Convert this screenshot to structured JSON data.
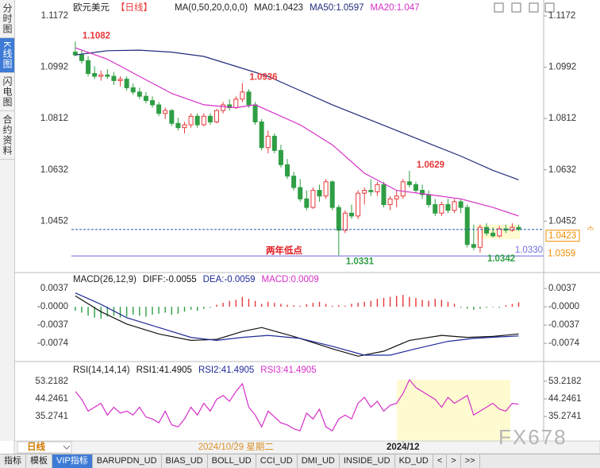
{
  "header": {
    "symbol": "欧元美元",
    "period": "【日线】",
    "ma_params": "MA(0,50,20,0,0,0)",
    "ma0": "MA0:1.0423"
  },
  "sidebar": [
    "分时图",
    "K线图",
    "闪电图",
    "合约资料"
  ],
  "chart_data": [
    {
      "type": "candlestick",
      "xlim": [
        -0.6,
        69.8
      ],
      "ylim": [
        1.028,
        1.1186
      ],
      "yticks": [
        1.1172,
        1.0992,
        1.0812,
        1.0632,
        1.0452
      ],
      "up_color": "#e8393a",
      "down_color": "#2f9e44",
      "open": [
        1.1045,
        1.1035,
        1.1015,
        1.097,
        1.096,
        1.0965,
        1.096,
        1.0945,
        1.095,
        1.092,
        1.0905,
        1.089,
        1.0875,
        1.086,
        1.083,
        1.084,
        1.0795,
        1.078,
        1.079,
        1.082,
        1.079,
        1.082,
        1.08,
        1.084,
        1.086,
        1.085,
        1.088,
        1.0905,
        1.086,
        1.08,
        1.071,
        1.075,
        1.07,
        1.065,
        1.061,
        1.057,
        1.053,
        1.05,
        1.056,
        1.054,
        1.059,
        1.05,
        1.042,
        1.048,
        1.047,
        1.055,
        1.056,
        1.0555,
        1.058,
        1.051,
        1.053,
        1.054,
        1.059,
        1.058,
        1.056,
        1.0545,
        1.051,
        1.048,
        1.051,
        1.049,
        1.052,
        1.05,
        1.037,
        1.036,
        1.043,
        1.041,
        1.04,
        1.0425,
        1.042,
        1.043
      ],
      "high": [
        1.1082,
        1.105,
        1.103,
        1.0995,
        1.098,
        1.0985,
        1.0975,
        1.096,
        1.096,
        1.0935,
        1.092,
        1.0905,
        1.089,
        1.087,
        1.085,
        1.0845,
        1.0815,
        1.08,
        1.083,
        1.083,
        1.083,
        1.083,
        1.0845,
        1.087,
        1.088,
        1.089,
        1.0936,
        1.0915,
        1.087,
        1.081,
        1.077,
        1.076,
        1.072,
        1.067,
        1.0625,
        1.06,
        1.056,
        1.057,
        1.058,
        1.06,
        1.0595,
        1.051,
        1.049,
        1.051,
        1.056,
        1.057,
        1.06,
        1.059,
        1.059,
        1.054,
        1.056,
        1.06,
        1.0629,
        1.059,
        1.058,
        1.056,
        1.053,
        1.052,
        1.053,
        1.053,
        1.053,
        1.051,
        1.044,
        1.044,
        1.0445,
        1.043,
        1.0435,
        1.044,
        1.0445,
        1.044
      ],
      "low": [
        1.103,
        1.1005,
        1.096,
        1.095,
        1.0945,
        1.095,
        1.093,
        1.0925,
        1.091,
        1.0895,
        1.088,
        1.0865,
        1.085,
        1.082,
        1.081,
        1.0785,
        1.077,
        1.076,
        1.078,
        1.078,
        1.0785,
        1.079,
        1.0795,
        1.083,
        1.084,
        1.0845,
        1.087,
        1.085,
        1.079,
        1.07,
        1.069,
        1.069,
        1.064,
        1.06,
        1.056,
        1.052,
        1.049,
        1.0495,
        1.052,
        1.053,
        1.049,
        1.0331,
        1.041,
        1.046,
        1.046,
        1.051,
        1.054,
        1.054,
        1.05,
        1.049,
        1.05,
        1.053,
        1.057,
        1.055,
        1.053,
        1.05,
        1.047,
        1.047,
        1.048,
        1.048,
        1.048,
        1.036,
        1.035,
        1.0342,
        1.04,
        1.0395,
        1.0395,
        1.041,
        1.0415,
        1.0418
      ],
      "close": [
        1.1035,
        1.1015,
        1.097,
        1.096,
        1.0965,
        1.096,
        1.0945,
        1.095,
        1.092,
        1.0905,
        1.089,
        1.0875,
        1.086,
        1.083,
        1.084,
        1.0795,
        1.078,
        1.079,
        1.082,
        1.079,
        1.082,
        1.08,
        1.084,
        1.086,
        1.085,
        1.088,
        1.0905,
        1.086,
        1.08,
        1.071,
        1.075,
        1.07,
        1.065,
        1.061,
        1.057,
        1.053,
        1.05,
        1.056,
        1.054,
        1.059,
        1.05,
        1.042,
        1.048,
        1.047,
        1.055,
        1.056,
        1.0555,
        1.058,
        1.051,
        1.053,
        1.054,
        1.059,
        1.058,
        1.056,
        1.0545,
        1.051,
        1.048,
        1.051,
        1.049,
        1.052,
        1.05,
        1.037,
        1.036,
        1.043,
        1.041,
        1.04,
        1.0425,
        1.042,
        1.043,
        1.0423
      ],
      "series": [
        {
          "name": "MA50:1.0597",
          "color": "#1f2b7a",
          "x": [
            0,
            5,
            10,
            15,
            20,
            25,
            30,
            35,
            40,
            45,
            50,
            55,
            60,
            65,
            69
          ],
          "values": [
            1.1035,
            1.105,
            1.1052,
            1.1045,
            1.103,
            1.0995,
            1.096,
            1.091,
            1.086,
            1.0815,
            1.077,
            1.0725,
            1.068,
            1.063,
            1.0597
          ]
        },
        {
          "name": "MA20:1.047",
          "color": "#d62fc8",
          "x": [
            0,
            5,
            10,
            15,
            20,
            25,
            28,
            30,
            35,
            40,
            45,
            50,
            55,
            60,
            65,
            69
          ],
          "values": [
            1.106,
            1.102,
            1.096,
            1.09,
            1.086,
            1.085,
            1.086,
            1.084,
            1.079,
            1.072,
            1.062,
            1.056,
            1.0545,
            1.053,
            1.05,
            1.047
          ]
        }
      ],
      "annotations": [
        {
          "text": "1.1082",
          "x": 0,
          "y": 1.1082,
          "position": "above",
          "color": "#e8393a"
        },
        {
          "text": "1.0936",
          "x": 26,
          "y": 1.0936,
          "position": "above",
          "color": "#e8393a"
        },
        {
          "text": "1.0629",
          "x": 52,
          "y": 1.0629,
          "position": "above",
          "color": "#e8393a"
        },
        {
          "text": "1.0331",
          "x": 41,
          "y": 1.0331,
          "position": "below",
          "color": "#2f9e44"
        },
        {
          "text": "1.0342",
          "x": 63,
          "y": 1.0342,
          "position": "below",
          "color": "#2f9e44"
        },
        {
          "text": "两年低点",
          "x": 32.5,
          "y": 1.0347,
          "color": "#e0161b"
        }
      ],
      "price_lines": [
        {
          "value": 1.0423,
          "label": "1.0423",
          "color": "#2d5fb0",
          "dashed": true,
          "tag_color": "#f08c00"
        },
        {
          "value": 1.033,
          "label": "1.0330",
          "color": "#6f6fe0"
        }
      ],
      "side_tag": 1.0359
    },
    {
      "type": "bar",
      "title": "MACD(26,12,9)",
      "name": "MACD:0.0009",
      "color": "#d62fc8",
      "ylim": [
        -0.0106,
        0.0058
      ],
      "yticks": [
        0.0037,
        {
          "value": 0,
          "label": "-0.0000"
        },
        -0.0037,
        -0.0074
      ],
      "up_color": "#e8393a",
      "down_color": "#2f9e44",
      "values": [
        -0.0008,
        -0.0012,
        -0.0018,
        -0.0022,
        -0.0024,
        -0.002,
        -0.0018,
        -0.0022,
        -0.002,
        -0.0016,
        -0.0018,
        -0.002,
        -0.0016,
        -0.0014,
        -0.0012,
        -0.0016,
        -0.0014,
        -0.001,
        -0.0006,
        -0.0008,
        -0.0004,
        -0.0002,
        0.0004,
        0.0008,
        0.0012,
        0.0014,
        0.002,
        0.0016,
        0.0012,
        0.0006,
        0.001,
        0.0008,
        0.0006,
        0.0004,
        0.0003,
        0.0002,
        0.0005,
        0.0008,
        0.001,
        0.0006,
        0.0002,
        0.0003,
        0.0002,
        0.0006,
        0.0008,
        0.001,
        0.0012,
        0.0016,
        0.0018,
        0.002,
        0.0022,
        0.0024,
        0.002,
        0.0018,
        0.0014,
        0.0012,
        0.0016,
        0.0014,
        0.001,
        0.0006,
        -0.0002,
        -0.0004,
        -0.0006,
        -0.0004,
        -0.0002,
        -0.0001,
        -0.0002,
        0.0003,
        0.0006,
        0.0009
      ],
      "series": [
        {
          "name": "DIFF:-0.0055",
          "color": "#111111",
          "x": [
            0,
            4,
            8,
            13,
            18,
            22,
            26,
            29,
            34,
            40,
            44,
            48,
            52,
            57,
            61,
            65,
            69
          ],
          "values": [
            0.0022,
            -0.001,
            -0.0035,
            -0.0055,
            -0.0068,
            -0.0066,
            -0.005,
            -0.0042,
            -0.006,
            -0.0085,
            -0.01,
            -0.009,
            -0.0068,
            -0.0058,
            -0.0062,
            -0.006,
            -0.0055
          ]
        },
        {
          "name": "DEA:-0.0059",
          "color": "#1f2b9a",
          "x": [
            0,
            4,
            8,
            13,
            18,
            22,
            26,
            30,
            35,
            40,
            45,
            49,
            53,
            58,
            62,
            66,
            69
          ],
          "values": [
            0.0028,
            0.0005,
            -0.0022,
            -0.0042,
            -0.0062,
            -0.0068,
            -0.0062,
            -0.0058,
            -0.0064,
            -0.008,
            -0.0098,
            -0.0098,
            -0.0085,
            -0.007,
            -0.0064,
            -0.0061,
            -0.0059
          ]
        }
      ]
    },
    {
      "type": "line",
      "title": "RSI(14,14,14)",
      "ylim": [
        24,
        56.4
      ],
      "yticks": [
        53.2182,
        44.2461,
        35.2741
      ],
      "extra_legend": [
        {
          "name": "RSI1:41.4905",
          "color": "#111111"
        },
        {
          "name": "RSI2:41.4905",
          "color": "#1f2b9a"
        }
      ],
      "series": [
        {
          "name": "RSI3:41.4905",
          "color": "#d62fc8",
          "values": [
            48,
            44,
            38,
            40,
            42,
            36,
            40,
            37,
            38,
            36,
            40,
            35,
            34,
            32,
            38,
            31,
            30,
            34,
            40,
            36,
            42,
            38,
            44,
            46,
            43,
            48,
            52,
            40,
            36,
            30,
            38,
            35,
            32,
            31,
            29,
            28,
            37,
            34,
            39,
            30,
            28,
            34,
            36,
            34,
            42,
            45,
            40,
            43,
            38,
            41,
            42,
            47,
            54,
            50,
            48,
            46,
            44,
            40,
            45,
            42,
            44,
            46,
            36,
            38,
            40,
            42,
            39,
            38,
            42,
            41.4905
          ]
        }
      ],
      "xticks": [
        {
          "value": 25,
          "label": "2024/10/29 星期二"
        },
        {
          "value": 51,
          "label": "2024/12"
        }
      ]
    }
  ],
  "period_tab": "日线",
  "toolbar": [
    "指标",
    "模板",
    "VIP指标",
    "BARUPDN_UD",
    "BIAS_UD",
    "BOLL_UD",
    "CCI_UD",
    "DMI_UD",
    "INSIDE_UD",
    "KD_UD",
    "<",
    ">",
    ">>"
  ],
  "watermark": "FX678"
}
